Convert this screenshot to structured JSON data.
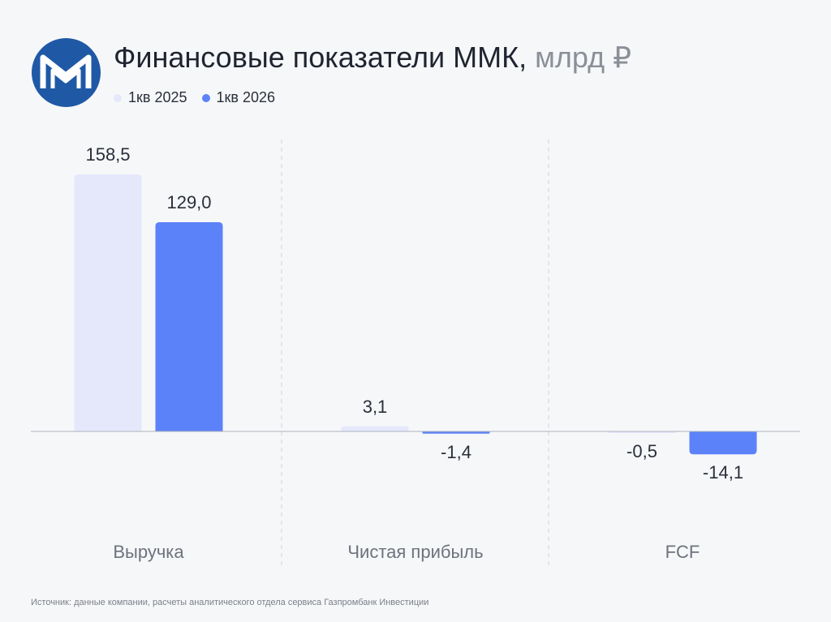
{
  "header": {
    "title": "Финансовые показатели ММК,",
    "unit": "млрд ₽"
  },
  "logo": {
    "icon": "mmk-logo-icon",
    "color": "#1f59a6"
  },
  "colors": {
    "series_2025": "#e5e8fb",
    "series_2026": "#5b82f8"
  },
  "chart_data": {
    "type": "bar",
    "categories": [
      "Выручка",
      "Чистая прибыль",
      "FCF"
    ],
    "series": [
      {
        "name": "1кв 2025",
        "values": [
          158.5,
          3.1,
          -0.5
        ],
        "labels": [
          "158,5",
          "3,1",
          "-0,5"
        ]
      },
      {
        "name": "1кв 2026",
        "values": [
          129.0,
          -1.4,
          -14.1
        ],
        "labels": [
          "129,0",
          "-1,4",
          "-14,1"
        ]
      }
    ],
    "legend_position": "top-left",
    "grid": false
  },
  "footer": {
    "source": "Источник: данные компании, расчеты аналитического отдела сервиса Газпромбанк Инвестиции"
  }
}
